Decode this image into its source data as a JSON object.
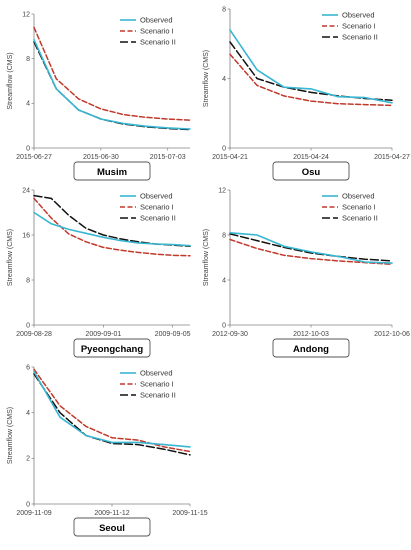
{
  "colors": {
    "observed": "#39b6d1",
    "scenario1": "#c0392b",
    "scenario2": "#111111",
    "axis": "#808080"
  },
  "chart_data": [
    {
      "type": "line",
      "site": "Musim",
      "ylabel": "Streamflow (CMS)",
      "ylim": [
        0,
        12
      ],
      "yticks": [
        "0",
        "4",
        "8",
        "12"
      ],
      "x": [
        "2015-06-27",
        "2015-06-28",
        "2015-06-29",
        "2015-06-30",
        "2015-07-01",
        "2015-07-02",
        "2015-07-03",
        "2015-07-04"
      ],
      "xticks": [
        "2015-06-27",
        "2015-06-30",
        "2015-07-03"
      ],
      "legend": "top-right",
      "series": [
        {
          "name": "Observed",
          "style": "solid",
          "values": [
            9.7,
            5.3,
            3.4,
            2.6,
            2.2,
            1.95,
            1.8,
            1.7
          ]
        },
        {
          "name": "Scenario I",
          "style": "dash",
          "values": [
            10.8,
            6.2,
            4.4,
            3.5,
            3.0,
            2.75,
            2.6,
            2.5
          ]
        },
        {
          "name": "Scenario II",
          "style": "longdash",
          "values": [
            9.5,
            5.3,
            3.4,
            2.6,
            2.15,
            1.9,
            1.75,
            1.65
          ]
        }
      ]
    },
    {
      "type": "line",
      "site": "Osu",
      "ylabel": "Streamflow (CMS)",
      "ylim": [
        0,
        8
      ],
      "yticks": [
        "0",
        "4",
        "8"
      ],
      "x": [
        "2015-04-21",
        "2015-04-22",
        "2015-04-23",
        "2015-04-24",
        "2015-04-25",
        "2015-04-26",
        "2015-04-27"
      ],
      "xticks": [
        "2015-04-21",
        "2015-04-24",
        "2015-04-27"
      ],
      "legend": "top-right",
      "series": [
        {
          "name": "Observed",
          "style": "solid",
          "values": [
            6.8,
            4.5,
            3.5,
            3.4,
            2.95,
            2.9,
            2.6
          ]
        },
        {
          "name": "Scenario I",
          "style": "dash",
          "values": [
            5.4,
            3.6,
            3.0,
            2.7,
            2.55,
            2.5,
            2.45
          ]
        },
        {
          "name": "Scenario II",
          "style": "longdash",
          "values": [
            6.1,
            4.0,
            3.5,
            3.2,
            3.0,
            2.85,
            2.75
          ]
        }
      ]
    },
    {
      "type": "line",
      "site": "Pyeongchang",
      "ylabel": "Streamflow (CMS)",
      "ylim": [
        0,
        24
      ],
      "yticks": [
        "0",
        "8",
        "16",
        "24"
      ],
      "x": [
        "2009-08-28",
        "2009-08-29",
        "2009-08-30",
        "2009-08-31",
        "2009-09-01",
        "2009-09-02",
        "2009-09-03",
        "2009-09-04",
        "2009-09-05",
        "2009-09-06"
      ],
      "xticks": [
        "2009-08-28",
        "2009-09-01",
        "2009-09-05"
      ],
      "legend": "top-right",
      "series": [
        {
          "name": "Observed",
          "style": "solid",
          "values": [
            20.0,
            18.0,
            17.0,
            16.3,
            15.6,
            15.0,
            14.6,
            14.4,
            14.3,
            14.1
          ]
        },
        {
          "name": "Scenario I",
          "style": "dash",
          "values": [
            22.5,
            19.0,
            16.2,
            14.8,
            13.8,
            13.3,
            12.9,
            12.6,
            12.4,
            12.3
          ]
        },
        {
          "name": "Scenario II",
          "style": "longdash",
          "values": [
            23.0,
            22.5,
            19.5,
            17.2,
            16.0,
            15.3,
            14.8,
            14.4,
            14.2,
            14.0
          ]
        }
      ]
    },
    {
      "type": "line",
      "site": "Andong",
      "ylabel": "Streamflow (CMS)",
      "ylim": [
        0,
        12
      ],
      "yticks": [
        "0",
        "4",
        "8",
        "12"
      ],
      "x": [
        "2012-09-30",
        "2012-10-01",
        "2012-10-02",
        "2012-10-03",
        "2012-10-04",
        "2012-10-05",
        "2012-10-06"
      ],
      "xticks": [
        "2012-09-30",
        "2012-10-03",
        "2012-10-06"
      ],
      "legend": "top-right",
      "series": [
        {
          "name": "Observed",
          "style": "solid",
          "values": [
            8.2,
            8.0,
            7.0,
            6.5,
            6.1,
            5.6,
            5.5
          ]
        },
        {
          "name": "Scenario I",
          "style": "dash",
          "values": [
            7.6,
            6.8,
            6.2,
            5.9,
            5.7,
            5.55,
            5.4
          ]
        },
        {
          "name": "Scenario II",
          "style": "longdash",
          "values": [
            8.1,
            7.5,
            6.9,
            6.4,
            6.1,
            5.85,
            5.7
          ]
        }
      ]
    },
    {
      "type": "line",
      "site": "Seoul",
      "ylabel": "Streamflow (CMS)",
      "ylim": [
        0,
        6
      ],
      "yticks": [
        "0",
        "2",
        "4",
        "6"
      ],
      "x": [
        "2009-11-09",
        "2009-11-10",
        "2009-11-11",
        "2009-11-12",
        "2009-11-13",
        "2009-11-14",
        "2009-11-15"
      ],
      "xticks": [
        "2009-11-09",
        "2009-11-12",
        "2009-11-15"
      ],
      "legend": "top-right",
      "series": [
        {
          "name": "Observed",
          "style": "solid",
          "values": [
            5.8,
            3.8,
            3.0,
            2.7,
            2.7,
            2.6,
            2.5
          ]
        },
        {
          "name": "Scenario I",
          "style": "dash",
          "values": [
            5.9,
            4.3,
            3.4,
            2.9,
            2.8,
            2.5,
            2.3
          ]
        },
        {
          "name": "Scenario II",
          "style": "longdash",
          "values": [
            5.7,
            4.0,
            3.0,
            2.65,
            2.6,
            2.4,
            2.15
          ]
        }
      ]
    }
  ]
}
